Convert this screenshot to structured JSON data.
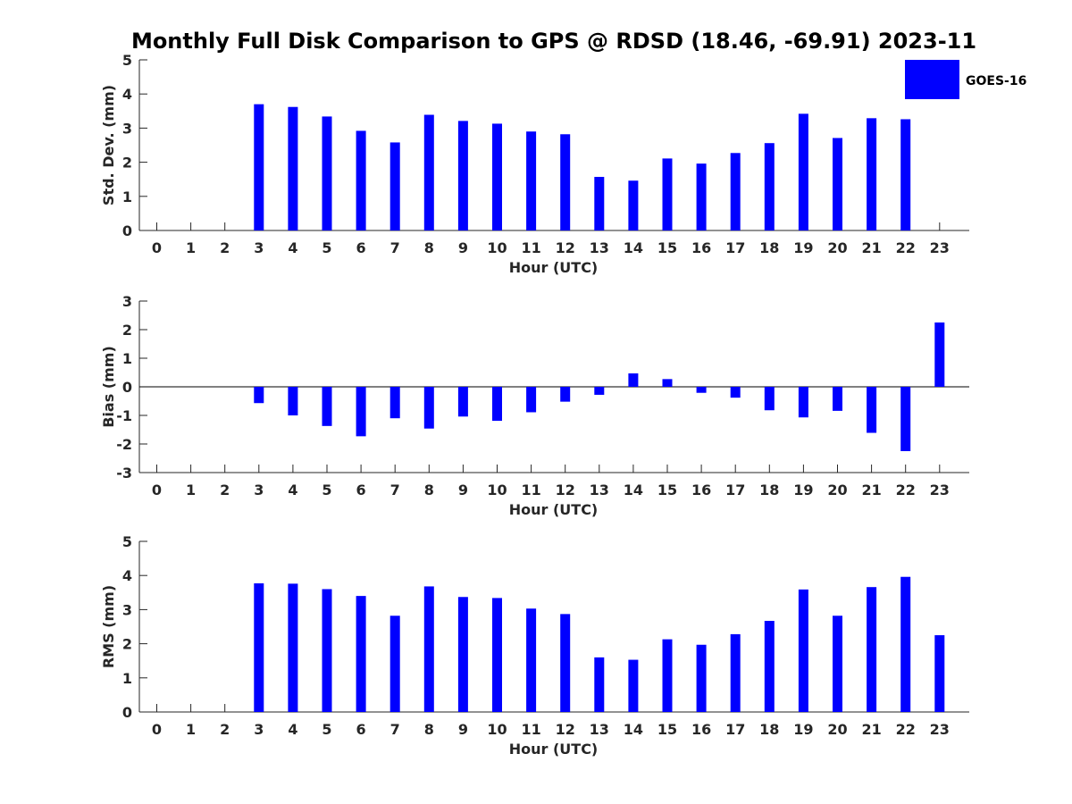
{
  "title": "Monthly Full Disk Comparison to GPS @ RDSD (18.46, -69.91) 2023-11",
  "legend": {
    "label": "GOES-16",
    "placement": "top-right"
  },
  "colors": {
    "bar": "#0000ff",
    "axis": "#262626",
    "title": "#000000"
  },
  "chart_data": [
    {
      "type": "bar",
      "xlabel": "Hour (UTC)",
      "ylabel": "Std. Dev. (mm)",
      "ylim": [
        0,
        5
      ],
      "yticks": [
        0,
        1,
        2,
        3,
        4,
        5
      ],
      "categories": [
        "0",
        "1",
        "2",
        "3",
        "4",
        "5",
        "6",
        "7",
        "8",
        "9",
        "10",
        "11",
        "12",
        "13",
        "14",
        "15",
        "16",
        "17",
        "18",
        "19",
        "20",
        "21",
        "22",
        "23"
      ],
      "series": [
        {
          "name": "GOES-16",
          "values": [
            null,
            null,
            null,
            3.7,
            3.62,
            3.34,
            2.92,
            2.58,
            3.39,
            3.21,
            3.13,
            2.9,
            2.82,
            1.57,
            1.46,
            2.11,
            1.96,
            2.27,
            2.56,
            3.42,
            2.71,
            3.29,
            3.26,
            null
          ]
        }
      ],
      "grid": false
    },
    {
      "type": "bar",
      "xlabel": "Hour (UTC)",
      "ylabel": "Bias (mm)",
      "ylim": [
        -3,
        3
      ],
      "yticks": [
        -3,
        -2,
        -1,
        0,
        1,
        2,
        3
      ],
      "categories": [
        "0",
        "1",
        "2",
        "3",
        "4",
        "5",
        "6",
        "7",
        "8",
        "9",
        "10",
        "11",
        "12",
        "13",
        "14",
        "15",
        "16",
        "17",
        "18",
        "19",
        "20",
        "21",
        "22",
        "23"
      ],
      "series": [
        {
          "name": "GOES-16",
          "values": [
            null,
            null,
            null,
            -0.57,
            -1.0,
            -1.37,
            -1.73,
            -1.1,
            -1.46,
            -1.04,
            -1.19,
            -0.89,
            -0.52,
            -0.28,
            0.47,
            0.27,
            -0.21,
            -0.38,
            -0.82,
            -1.07,
            -0.84,
            -1.61,
            -2.25,
            2.25
          ]
        }
      ],
      "zero_line": true,
      "grid": false
    },
    {
      "type": "bar",
      "xlabel": "Hour (UTC)",
      "ylabel": "RMS (mm)",
      "ylim": [
        0,
        5
      ],
      "yticks": [
        0,
        1,
        2,
        3,
        4,
        5
      ],
      "categories": [
        "0",
        "1",
        "2",
        "3",
        "4",
        "5",
        "6",
        "7",
        "8",
        "9",
        "10",
        "11",
        "12",
        "13",
        "14",
        "15",
        "16",
        "17",
        "18",
        "19",
        "20",
        "21",
        "22",
        "23"
      ],
      "series": [
        {
          "name": "GOES-16",
          "values": [
            null,
            null,
            null,
            3.77,
            3.76,
            3.6,
            3.4,
            2.82,
            3.68,
            3.37,
            3.34,
            3.03,
            2.87,
            1.6,
            1.53,
            2.13,
            1.97,
            2.28,
            2.67,
            3.59,
            2.82,
            3.66,
            3.96,
            2.25
          ]
        }
      ],
      "grid": false
    }
  ]
}
